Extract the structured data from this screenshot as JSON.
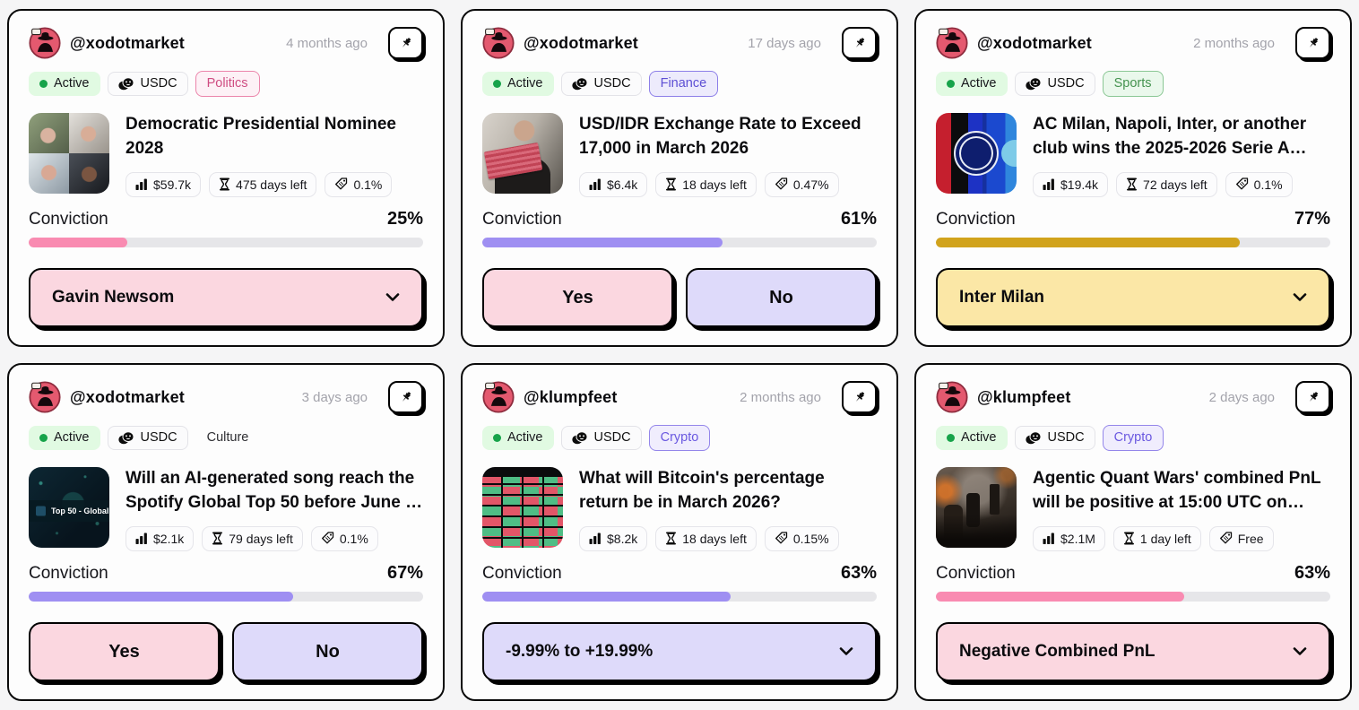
{
  "page": {
    "background_color": "#f5f5f6"
  },
  "icons": {
    "pin": "pushpin-icon",
    "currency": "coin-icon",
    "status_dot": "green-dot-icon",
    "volume": "bar-chart-icon",
    "time_left": "hourglass-icon",
    "fee": "tag-icon",
    "dropdown": "chevron-down-icon"
  },
  "cards": [
    {
      "username": "@xodotmarket",
      "time_ago": "4 months ago",
      "status": "Active",
      "currency": "USDC",
      "category": "Politics",
      "category_class": "politics",
      "title": "Democratic Presidential Nominee 2028",
      "thumb": "politicians",
      "thumb_caption": "",
      "stats": {
        "volume": "$59.7k",
        "time_left": "475 days left",
        "fee": "0.1%"
      },
      "conviction": {
        "label": "Conviction",
        "value": "25%",
        "percent": 25,
        "bar_color": "#f98bb1"
      },
      "action": {
        "type": "dropdown",
        "label": "Gavin Newsom",
        "bg": "#fbd7e0"
      }
    },
    {
      "username": "@xodotmarket",
      "time_ago": "17 days ago",
      "status": "Active",
      "currency": "USDC",
      "category": "Finance",
      "category_class": "finance",
      "title": "USD/IDR Exchange Rate to Exceed 17,000 in March 2026",
      "thumb": "banknote",
      "thumb_caption": "",
      "stats": {
        "volume": "$6.4k",
        "time_left": "18 days left",
        "fee": "0.47%"
      },
      "conviction": {
        "label": "Conviction",
        "value": "61%",
        "percent": 61,
        "bar_color": "#9f8ff2"
      },
      "action": {
        "type": "yesno",
        "yes_label": "Yes",
        "no_label": "No",
        "yes_bg": "#fbd7e0",
        "no_bg": "#dedafa"
      }
    },
    {
      "username": "@xodotmarket",
      "time_ago": "2 months ago",
      "status": "Active",
      "currency": "USDC",
      "category": "Sports",
      "category_class": "sports",
      "title": "AC Milan, Napoli, Inter, or another club wins the 2025-2026 Serie A…",
      "thumb": "seriea",
      "thumb_caption": "",
      "stats": {
        "volume": "$19.4k",
        "time_left": "72 days left",
        "fee": "0.1%"
      },
      "conviction": {
        "label": "Conviction",
        "value": "77%",
        "percent": 77,
        "bar_color": "#d1a31c"
      },
      "action": {
        "type": "dropdown",
        "label": "Inter Milan",
        "bg": "#fbe7a6"
      }
    },
    {
      "username": "@xodotmarket",
      "time_ago": "3 days ago",
      "status": "Active",
      "currency": "USDC",
      "category": "Culture",
      "category_class": "culture",
      "title": "Will an AI-generated song reach the Spotify Global Top 50 before June …",
      "thumb": "spotify",
      "thumb_caption": "Top 50 - Global",
      "stats": {
        "volume": "$2.1k",
        "time_left": "79 days left",
        "fee": "0.1%"
      },
      "conviction": {
        "label": "Conviction",
        "value": "67%",
        "percent": 67,
        "bar_color": "#9f8ff2"
      },
      "action": {
        "type": "yesno",
        "yes_label": "Yes",
        "no_label": "No",
        "yes_bg": "#fbd7e0",
        "no_bg": "#dedafa"
      }
    },
    {
      "username": "@klumpfeet",
      "time_ago": "2 months ago",
      "status": "Active",
      "currency": "USDC",
      "category": "Crypto",
      "category_class": "crypto",
      "title": "What will Bitcoin's percentage return be in March 2026?",
      "thumb": "heatmap",
      "thumb_caption": "",
      "stats": {
        "volume": "$8.2k",
        "time_left": "18 days left",
        "fee": "0.15%"
      },
      "conviction": {
        "label": "Conviction",
        "value": "63%",
        "percent": 63,
        "bar_color": "#9f8ff2"
      },
      "action": {
        "type": "dropdown",
        "label": "-9.99% to +19.99%",
        "bg": "#dedafa"
      }
    },
    {
      "username": "@klumpfeet",
      "time_ago": "2 days ago",
      "status": "Active",
      "currency": "USDC",
      "category": "Crypto",
      "category_class": "crypto",
      "title": "Agentic Quant Wars' combined PnL will be positive at 15:00 UTC on…",
      "thumb": "battle",
      "thumb_caption": "",
      "stats": {
        "volume": "$2.1M",
        "time_left": "1 day left",
        "fee": "Free"
      },
      "conviction": {
        "label": "Conviction",
        "value": "63%",
        "percent": 63,
        "bar_color": "#f98bb1"
      },
      "action": {
        "type": "dropdown",
        "label": "Negative Combined PnL",
        "bg": "#fbd7e0"
      }
    }
  ]
}
